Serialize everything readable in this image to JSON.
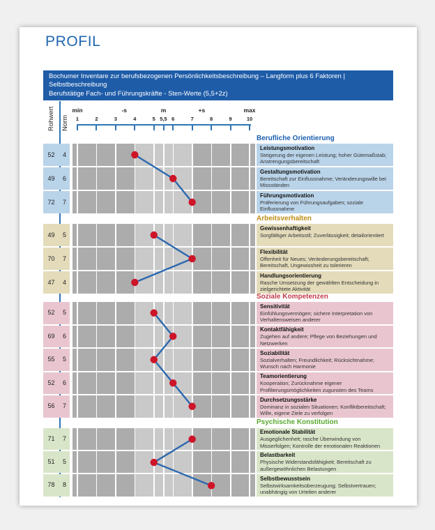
{
  "page": {
    "title": "PROFIL"
  },
  "header_bar": {
    "lines": [
      "Bochumer Inventare zur berufsbezogenen Persönlichkeitsbeschreibung – Langform plus 6 Faktoren |",
      "Selbstbeschreibung",
      "Berufstätige Fach- und Führungskräfte - Sten-Werte (5,5+2z)"
    ]
  },
  "scale": {
    "col_rohwert": "Rohwert",
    "col_norm": "Norm",
    "region_labels": [
      {
        "text": "min",
        "pos": 1
      },
      {
        "text": "-s",
        "pos": 3.45
      },
      {
        "text": "m",
        "pos": 5.5
      },
      {
        "text": "+s",
        "pos": 7.5
      },
      {
        "text": "max",
        "pos": 10
      }
    ],
    "ticks": [
      {
        "value": 1,
        "label": "1"
      },
      {
        "value": 2,
        "label": "2"
      },
      {
        "value": 3,
        "label": "3"
      },
      {
        "value": 4,
        "label": "4"
      },
      {
        "value": 5,
        "label": "5"
      },
      {
        "value": 5.5,
        "label": "5,5"
      },
      {
        "value": 6,
        "label": "6"
      },
      {
        "value": 7,
        "label": "7"
      },
      {
        "value": 8,
        "label": "8"
      },
      {
        "value": 9,
        "label": "9"
      },
      {
        "value": 10,
        "label": "10"
      }
    ]
  },
  "colors": {
    "title_blue": "#2166B0",
    "bar_blue": "#1E5CA8",
    "axis_blue": "#2E74B5",
    "line_blue": "#2C68AE",
    "dot_red": "#CE1428",
    "band_dark": "#ACACAC",
    "band_light": "#C9C9C9"
  },
  "sections": [
    {
      "title": "Berufliche Orientierung",
      "title_color": "#1B5FAF",
      "row_bg": "#B9D3E9",
      "rows": [
        {
          "rohwert": "52",
          "norm": "4",
          "norm_value": 4,
          "title": "Leistungsmotivation",
          "desc": "Steigerung der eigenen Leistung; hoher Gütemaßstab; Anstrengungsbereitschaft"
        },
        {
          "rohwert": "49",
          "norm": "6",
          "norm_value": 6,
          "title": "Gestaltungsmotivation",
          "desc": "Bereitschaft zur Einflussnahme; Veränderungswille bei Missständen"
        },
        {
          "rohwert": "72",
          "norm": "7",
          "norm_value": 7,
          "title": "Führungsmotivation",
          "desc": "Präferierung von Führungsaufgaben; soziale Einflussnahme"
        }
      ]
    },
    {
      "title": "Arbeitsverhalten",
      "title_color": "#BD8D15",
      "row_bg": "#E3DBBA",
      "rows": [
        {
          "rohwert": "49",
          "norm": "5",
          "norm_value": 5,
          "title": "Gewissenhaftigkeit",
          "desc": "Sorgfältiger Arbeitsstil; Zuverlässigkeit; detailorientiert"
        },
        {
          "rohwert": "70",
          "norm": "7",
          "norm_value": 7,
          "title": "Flexibilität",
          "desc": "Offenheit für Neues; Veränderungsbereitschaft; Bereitschaft, Ungewissheit zu tolerieren"
        },
        {
          "rohwert": "47",
          "norm": "4",
          "norm_value": 4,
          "title": "Handlungsorientierung",
          "desc": "Rasche Umsetzung der gewählten Entscheidung in zielgerichtete Aktivität"
        }
      ]
    },
    {
      "title": "Soziale Kompetenzen",
      "title_color": "#C23A47",
      "row_bg": "#E9C6CF",
      "rows": [
        {
          "rohwert": "52",
          "norm": "5",
          "norm_value": 5,
          "title": "Sensitivität",
          "desc": "Einfühlungsvermögen; sichere Interpretation von Verhaltensweisen anderer"
        },
        {
          "rohwert": "69",
          "norm": "6",
          "norm_value": 6,
          "title": "Kontaktfähigkeit",
          "desc": "Zugehen auf andere; Pflege von Beziehungen und Netzwerken"
        },
        {
          "rohwert": "55",
          "norm": "5",
          "norm_value": 5,
          "title": "Soziabilität",
          "desc": "Sozialverhalten; Freundlichkeit; Rücksichtnahme; Wunsch nach Harmonie"
        },
        {
          "rohwert": "52",
          "norm": "6",
          "norm_value": 6,
          "title": "Teamorientierung",
          "desc": "Kooperation; Zurücknahme eigener Profilierungsmöglichkeiten zugunsten des Teams"
        },
        {
          "rohwert": "56",
          "norm": "7",
          "norm_value": 7,
          "title": "Durchsetzungsstärke",
          "desc": "Dominanz in sozialen Situationen; Konfliktbereitschaft; Wille, eigene Ziele zu verfolgen"
        }
      ]
    },
    {
      "title": "Psychische Konstitution",
      "title_color": "#59A82F",
      "row_bg": "#D9E5C9",
      "rows": [
        {
          "rohwert": "71",
          "norm": "7",
          "norm_value": 7,
          "title": "Emotionale Stabilität",
          "desc": "Ausgeglichenheit; rasche Überwindung von Misserfolgen; Kontrolle der emotionalen Reaktionen"
        },
        {
          "rohwert": "51",
          "norm": "5",
          "norm_value": 5,
          "title": "Belastbarkeit",
          "desc": "Physische Widerstandsfähigkeit; Bereitschaft zu außergewöhnlichen Belastungen"
        },
        {
          "rohwert": "78",
          "norm": "8",
          "norm_value": 8,
          "title": "Selbstbewusstsein",
          "desc": "Selbstwirksamkeitsüberzeugung; Selbstvertrauen; unabhängig von Urteilen anderer"
        }
      ]
    }
  ],
  "chart_data": {
    "type": "line",
    "title": "BIP Profil - Sten-Werte",
    "categories": [
      "Leistungsmotivation",
      "Gestaltungsmotivation",
      "Führungsmotivation",
      "Gewissenhaftigkeit",
      "Flexibilität",
      "Handlungsorientierung",
      "Sensitivität",
      "Kontaktfähigkeit",
      "Soziabilität",
      "Teamorientierung",
      "Durchsetzungsstärke",
      "Emotionale Stabilität",
      "Belastbarkeit",
      "Selbstbewusstsein"
    ],
    "series": [
      {
        "name": "Norm (Sten)",
        "values": [
          4,
          6,
          7,
          5,
          7,
          4,
          5,
          6,
          5,
          6,
          7,
          7,
          5,
          8
        ]
      },
      {
        "name": "Rohwert",
        "values": [
          52,
          49,
          72,
          49,
          70,
          47,
          52,
          69,
          55,
          52,
          56,
          71,
          51,
          78
        ]
      }
    ],
    "xlim": [
      1,
      10
    ],
    "xticks": [
      1,
      2,
      3,
      4,
      5,
      5.5,
      6,
      7,
      8,
      9,
      10
    ],
    "average_band": [
      4,
      7
    ],
    "legend": "none",
    "grid": "vertical bands"
  }
}
